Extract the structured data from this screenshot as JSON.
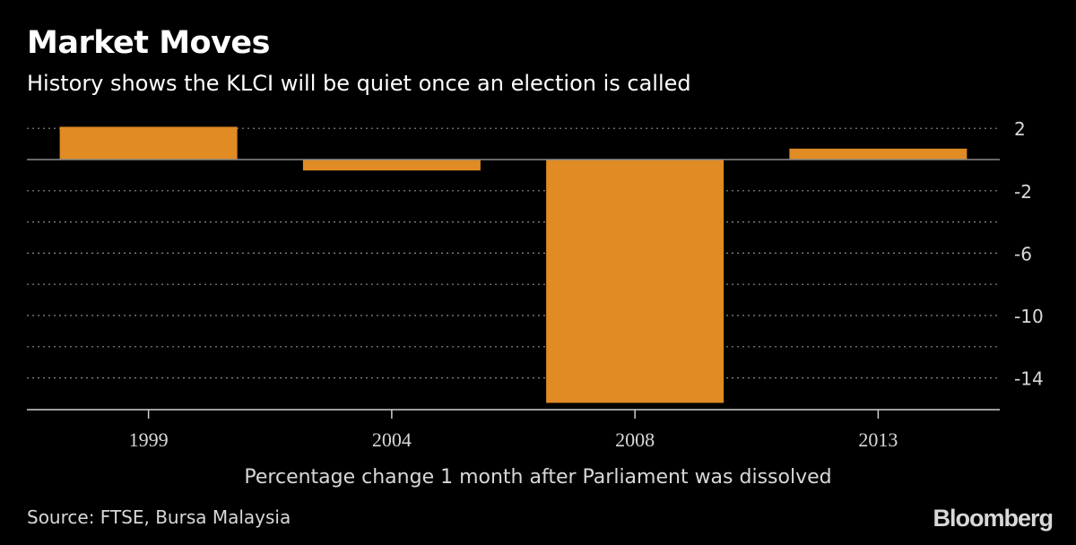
{
  "header": {
    "title": "Market Moves",
    "subtitle": "History shows the KLCI will be quiet once an election is called"
  },
  "footer": {
    "note": "Percentage change 1 month after Parliament was dissolved",
    "source": "Source: FTSE, Bursa Malaysia",
    "brand": "Bloomberg"
  },
  "colors": {
    "background": "#000000",
    "bar": "#e08b24",
    "text": "#d8d8d8",
    "grid": "#8a8a8a",
    "axis": "#cfcfcf"
  },
  "chart_data": {
    "type": "bar",
    "title": "Market Moves",
    "subtitle": "History shows the KLCI will be quiet once an election is called",
    "xlabel": "Percentage change 1 month after Parliament was dissolved",
    "ylabel": "",
    "categories": [
      "1999",
      "2004",
      "2008",
      "2013"
    ],
    "values": [
      2.1,
      -0.7,
      -15.6,
      0.7
    ],
    "ylim": [
      -16,
      2
    ],
    "yticks": [
      2,
      -2,
      -6,
      -10,
      -14
    ],
    "ytick_labels": [
      "2",
      "-2",
      "-6",
      "-10",
      "-14"
    ],
    "grid": true,
    "grid_style": "dotted",
    "y_axis_position": "right"
  }
}
